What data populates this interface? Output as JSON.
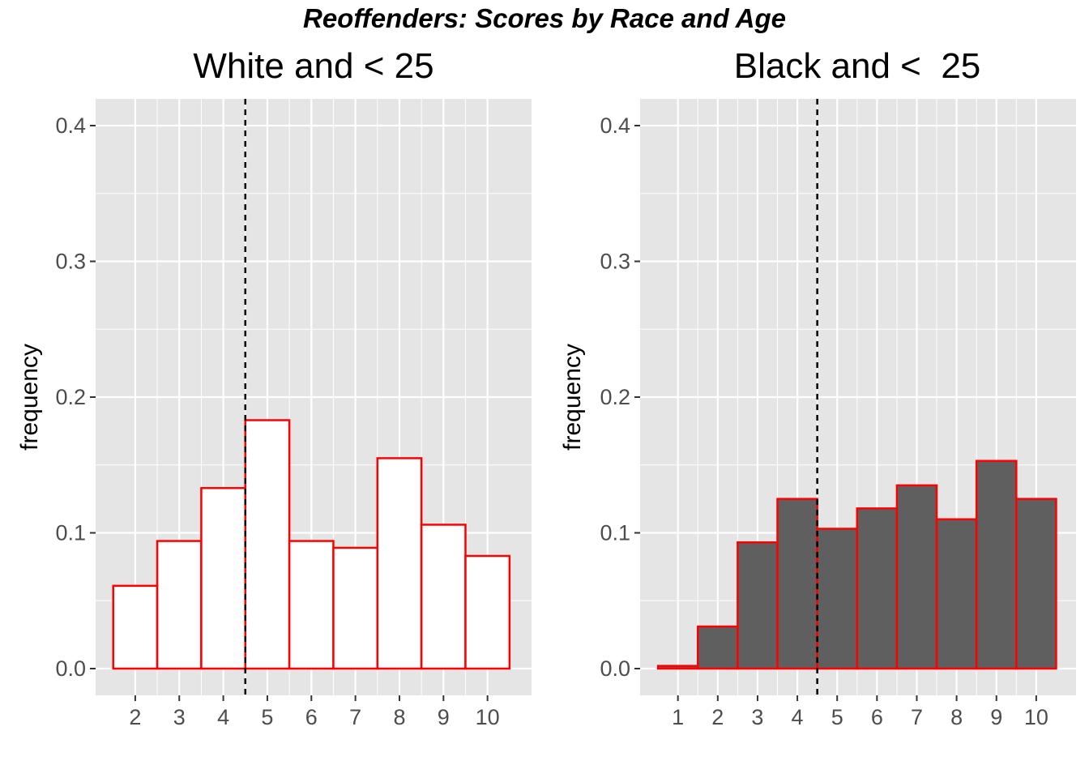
{
  "title": "Reoffenders: Scores by Race and Age",
  "colors": {
    "panel_background": "#e5e5e5",
    "grid": "#ffffff",
    "bar_outline": "#ff0000",
    "tick_text": "#4d4d4d",
    "tick_mark": "#333333",
    "threshold_line": "#000000"
  },
  "chart_data": [
    {
      "type": "bar",
      "title": "White and < 25",
      "xlabel": "",
      "ylabel": "frequency",
      "categories": [
        "2",
        "3",
        "4",
        "5",
        "6",
        "7",
        "8",
        "9",
        "10"
      ],
      "x": [
        2,
        3,
        4,
        5,
        6,
        7,
        8,
        9,
        10
      ],
      "values": [
        0.061,
        0.094,
        0.133,
        0.183,
        0.094,
        0.089,
        0.155,
        0.106,
        0.083
      ],
      "fill": "#ffffff",
      "outline": "#ff0000",
      "threshold": 4.5,
      "ylim": [
        0,
        0.42
      ],
      "yticks": [
        0.0,
        0.1,
        0.2,
        0.3,
        0.4
      ],
      "ytick_labels": [
        "0.0",
        "0.1",
        "0.2",
        "0.3",
        "0.4"
      ],
      "xlim": [
        1.1,
        11.0
      ],
      "grid": true,
      "legend": "none"
    },
    {
      "type": "bar",
      "title": "Black and <  25",
      "xlabel": "",
      "ylabel": "frequency",
      "categories": [
        "1",
        "2",
        "3",
        "4",
        "5",
        "6",
        "7",
        "8",
        "9",
        "10"
      ],
      "x": [
        1,
        2,
        3,
        4,
        5,
        6,
        7,
        8,
        9,
        10
      ],
      "values": [
        0.002,
        0.031,
        0.093,
        0.125,
        0.103,
        0.118,
        0.135,
        0.11,
        0.153,
        0.125
      ],
      "fill": "#5f5f5f",
      "outline": "#ff0000",
      "threshold": 4.5,
      "ylim": [
        0,
        0.42
      ],
      "yticks": [
        0.0,
        0.1,
        0.2,
        0.3,
        0.4
      ],
      "ytick_labels": [
        "0.0",
        "0.1",
        "0.2",
        "0.3",
        "0.4"
      ],
      "xlim": [
        0.05,
        11.0
      ],
      "grid": true,
      "legend": "none"
    }
  ]
}
